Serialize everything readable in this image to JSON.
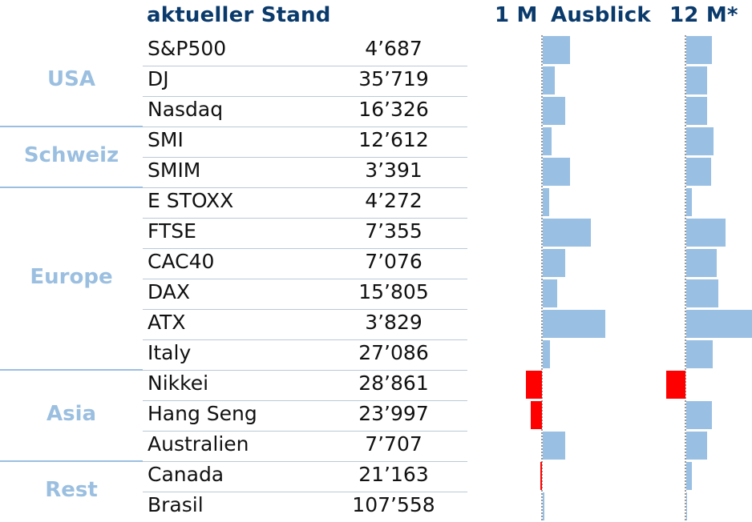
{
  "header": {
    "current_label": "aktueller Stand",
    "m1_label": "1 M",
    "outlook_label": "Ausblick",
    "m12_label": "12 M*"
  },
  "colors": {
    "positive": "#99bfe3",
    "negative": "#ff0000",
    "region": "#9bbfe0",
    "title": "#0a3a6b"
  },
  "regions": [
    {
      "label": "USA"
    },
    {
      "label": "Schweiz"
    },
    {
      "label": "Europe"
    },
    {
      "label": "Asia"
    },
    {
      "label": "Rest"
    }
  ],
  "rows": [
    {
      "name": "S&P500",
      "value": "4’687"
    },
    {
      "name": "DJ",
      "value": "35’719"
    },
    {
      "name": "Nasdaq",
      "value": "16’326"
    },
    {
      "name": "SMI",
      "value": "12’612"
    },
    {
      "name": "SMIM",
      "value": "3’391"
    },
    {
      "name": "E STOXX",
      "value": "4’272"
    },
    {
      "name": "FTSE",
      "value": "7’355"
    },
    {
      "name": "CAC40",
      "value": "7’076"
    },
    {
      "name": "DAX",
      "value": "15’805"
    },
    {
      "name": "ATX",
      "value": "3’829"
    },
    {
      "name": "Italy",
      "value": "27’086"
    },
    {
      "name": "Nikkei",
      "value": "28’861"
    },
    {
      "name": "Hang Seng",
      "value": "23’997"
    },
    {
      "name": "Australien",
      "value": "7’707"
    },
    {
      "name": "Canada",
      "value": "21’163"
    },
    {
      "name": "Brasil",
      "value": "107’558"
    }
  ],
  "chart_data": {
    "type": "bar",
    "orientation": "horizontal",
    "categories": [
      "S&P500",
      "DJ",
      "Nasdaq",
      "SMI",
      "SMIM",
      "E STOXX",
      "FTSE",
      "CAC40",
      "DAX",
      "ATX",
      "Italy",
      "Nikkei",
      "Hang Seng",
      "Australien",
      "Canada",
      "Brasil"
    ],
    "series": [
      {
        "name": "1 M",
        "values": [
          0.34,
          0.15,
          0.28,
          0.11,
          0.34,
          0.08,
          0.6,
          0.28,
          0.18,
          0.78,
          0.09,
          -0.2,
          -0.14,
          0.28,
          -0.02,
          0.02
        ]
      },
      {
        "name": "12 M*",
        "values": [
          0.32,
          0.26,
          0.26,
          0.34,
          0.31,
          0.07,
          0.49,
          0.38,
          0.4,
          0.84,
          0.33,
          -0.24,
          0.32,
          0.26,
          0.07,
          0.01
        ]
      }
    ]
  }
}
